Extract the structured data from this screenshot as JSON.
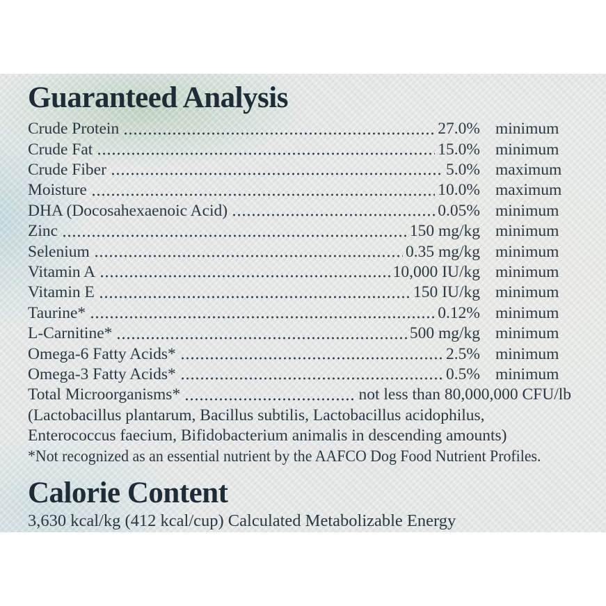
{
  "colors": {
    "page_background": "#ffffff",
    "label_background": "#e5e9e8",
    "text": "#2b3742",
    "heading_text": "#1e2c37",
    "watercolor_sage": "#9ec2a2",
    "watercolor_teal": "#8cc0c8"
  },
  "guaranteed_analysis": {
    "title": "Guaranteed Analysis",
    "rows": [
      {
        "label": "Crude Protein",
        "value": "27.0%",
        "qualifier": "minimum"
      },
      {
        "label": "Crude Fat",
        "value": "15.0%",
        "qualifier": "minimum"
      },
      {
        "label": "Crude Fiber",
        "value": "5.0%",
        "qualifier": "maximum"
      },
      {
        "label": "Moisture",
        "value": "10.0%",
        "qualifier": "maximum"
      },
      {
        "label": "DHA (Docosahexaenoic Acid)",
        "value": "0.05%",
        "qualifier": "minimum"
      },
      {
        "label": "Zinc",
        "value": "150 mg/kg",
        "qualifier": "minimum"
      },
      {
        "label": "Selenium",
        "value": "0.35 mg/kg",
        "qualifier": "minimum"
      },
      {
        "label": "Vitamin A",
        "value": "10,000 IU/kg",
        "qualifier": "minimum"
      },
      {
        "label": "Vitamin E",
        "value": "150 IU/kg",
        "qualifier": "minimum"
      },
      {
        "label": "Taurine*",
        "value": "0.12%",
        "qualifier": "minimum"
      },
      {
        "label": "L-Carnitine*",
        "value": "500 mg/kg",
        "qualifier": "minimum"
      },
      {
        "label": "Omega-6 Fatty Acids*",
        "value": "2.5%",
        "qualifier": "minimum"
      },
      {
        "label": "Omega-3 Fatty Acids*",
        "value": "0.5%",
        "qualifier": "minimum"
      }
    ],
    "microorganisms_row": {
      "label": "Total Microorganisms*",
      "value": "not less than 80,000,000 CFU/lb"
    },
    "organisms_note_line1": "(Lactobacillus plantarum, Bacillus subtilis, Lactobacillus acidophilus,",
    "organisms_note_line2": "Enterococcus faecium, Bifidobacterium animalis in descending amounts)",
    "footnote": "*Not recognized as an essential nutrient by the AAFCO Dog Food Nutrient Profiles."
  },
  "calorie_content": {
    "title": "Calorie Content",
    "statement": "3,630 kcal/kg (412 kcal/cup) Calculated Metabolizable Energy"
  }
}
